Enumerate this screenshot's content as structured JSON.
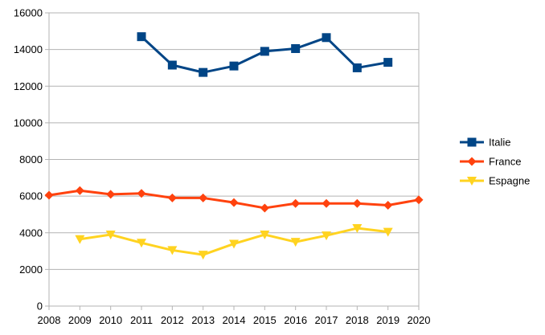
{
  "chart_data": {
    "type": "line",
    "x": [
      2008,
      2009,
      2010,
      2011,
      2012,
      2013,
      2014,
      2015,
      2016,
      2017,
      2018,
      2019,
      2020
    ],
    "x_tick_labels": [
      "2008",
      "2009",
      "2010",
      "2011",
      "2012",
      "2013",
      "2014",
      "2015",
      "2016",
      "2017",
      "2018",
      "2019",
      "2020"
    ],
    "ylim": [
      0,
      16000
    ],
    "y_ticks": [
      0,
      2000,
      4000,
      6000,
      8000,
      10000,
      12000,
      14000,
      16000
    ],
    "y_tick_labels": [
      "0",
      "2000",
      "4000",
      "6000",
      "8000",
      "10000",
      "12000",
      "14000",
      "16000"
    ],
    "grid": "horizontal",
    "legend_position": "right",
    "series": [
      {
        "name": "Italie",
        "color": "#004586",
        "marker": "square",
        "values": [
          null,
          null,
          null,
          14700,
          13150,
          12750,
          13100,
          13900,
          14050,
          14650,
          13000,
          13300,
          null
        ]
      },
      {
        "name": "France",
        "color": "#ff420e",
        "marker": "diamond",
        "values": [
          6050,
          6300,
          6100,
          6150,
          5900,
          5900,
          5650,
          5350,
          5600,
          5600,
          5600,
          5500,
          5800
        ]
      },
      {
        "name": "Espagne",
        "color": "#ffd320",
        "marker": "triangle-down",
        "values": [
          null,
          3650,
          3900,
          3450,
          3050,
          2800,
          3400,
          3900,
          3500,
          3850,
          4250,
          4050,
          null
        ]
      }
    ]
  }
}
